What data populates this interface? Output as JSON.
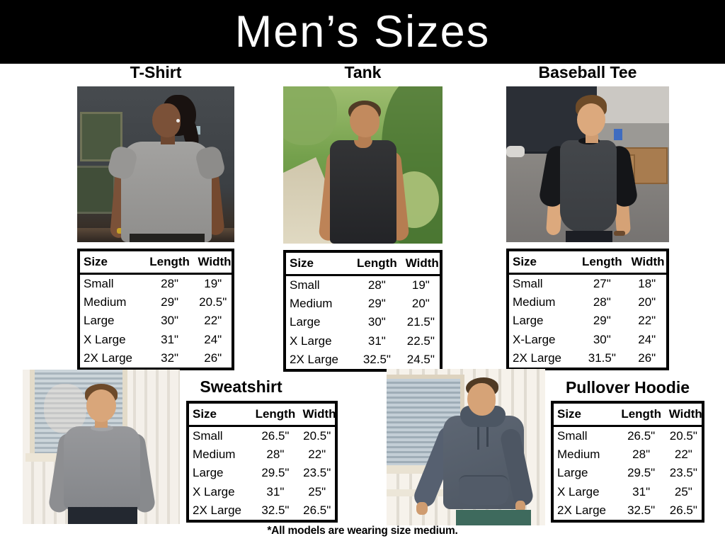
{
  "banner": {
    "title": "Men’s Sizes"
  },
  "columns": [
    "Size",
    "Length",
    "Width"
  ],
  "products": [
    {
      "name": "T-Shirt",
      "rows": [
        [
          "Small",
          "28\"",
          "19\""
        ],
        [
          "Medium",
          "29\"",
          "20.5\""
        ],
        [
          "Large",
          "30\"",
          "22\""
        ],
        [
          "X Large",
          "31\"",
          "24\""
        ],
        [
          "2X Large",
          "32\"",
          "26\""
        ]
      ]
    },
    {
      "name": "Tank",
      "rows": [
        [
          "Small",
          "28\"",
          "19\""
        ],
        [
          "Medium",
          "29\"",
          "20\""
        ],
        [
          "Large",
          "30\"",
          "21.5\""
        ],
        [
          "X Large",
          "31\"",
          "22.5\""
        ],
        [
          "2X Large",
          "32.5\"",
          "24.5\""
        ]
      ]
    },
    {
      "name": "Baseball Tee",
      "rows": [
        [
          "Small",
          "27\"",
          "18\""
        ],
        [
          "Medium",
          "28\"",
          "20\""
        ],
        [
          "Large",
          "29\"",
          "22\""
        ],
        [
          "X-Large",
          "30\"",
          "24\""
        ],
        [
          "2X Large",
          "31.5\"",
          "26\""
        ]
      ]
    },
    {
      "name": "Sweatshirt",
      "rows": [
        [
          "Small",
          "26.5\"",
          "20.5\""
        ],
        [
          "Medium",
          "28\"",
          "22\""
        ],
        [
          "Large",
          "29.5\"",
          "23.5\""
        ],
        [
          "X Large",
          "31\"",
          "25\""
        ],
        [
          "2X Large",
          "32.5\"",
          "26.5\""
        ]
      ]
    },
    {
      "name": "Pullover Hoodie",
      "rows": [
        [
          "Small",
          "26.5\"",
          "20.5\""
        ],
        [
          "Medium",
          "28\"",
          "22\""
        ],
        [
          "Large",
          "29.5\"",
          "23.5\""
        ],
        [
          "X Large",
          "31\"",
          "25\""
        ],
        [
          "2X Large",
          "32.5\"",
          "26.5\""
        ]
      ]
    }
  ],
  "footnote": "*All models are wearing size medium.",
  "colors": {
    "banner_bg": "#000000",
    "banner_text": "#ffffff",
    "body_text": "#000000",
    "table_border": "#000000"
  }
}
